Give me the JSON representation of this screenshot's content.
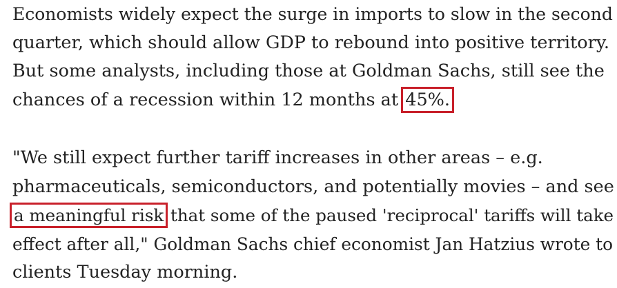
{
  "paragraphs": [
    {
      "lines": [
        {
          "text": "Economists widely expect the surge in imports to slow in the second"
        },
        {
          "text": "quarter, which should allow GDP to rebound into positive territory."
        },
        {
          "text": "But some analysts, including those at Goldman Sachs, still see the"
        },
        {
          "before": "chances of a recession within 12 months at ",
          "highlight": "45%.",
          "after": ""
        }
      ]
    },
    {
      "lines": [
        {
          "text": "\"We still expect further tariff increases in other areas – e.g."
        },
        {
          "text": "pharmaceuticals, semiconductors, and potentially movies – and see"
        },
        {
          "before": "",
          "highlight": "a meaningful risk",
          "after": " that some of the paused 'reciprocal' tariffs will take"
        },
        {
          "text": "effect after all,\" Goldman Sachs chief economist Jan Hatzius wrote to"
        },
        {
          "text": "clients Tuesday morning."
        }
      ]
    }
  ],
  "highlight_color": "#c8202a",
  "text_color": "#222222"
}
